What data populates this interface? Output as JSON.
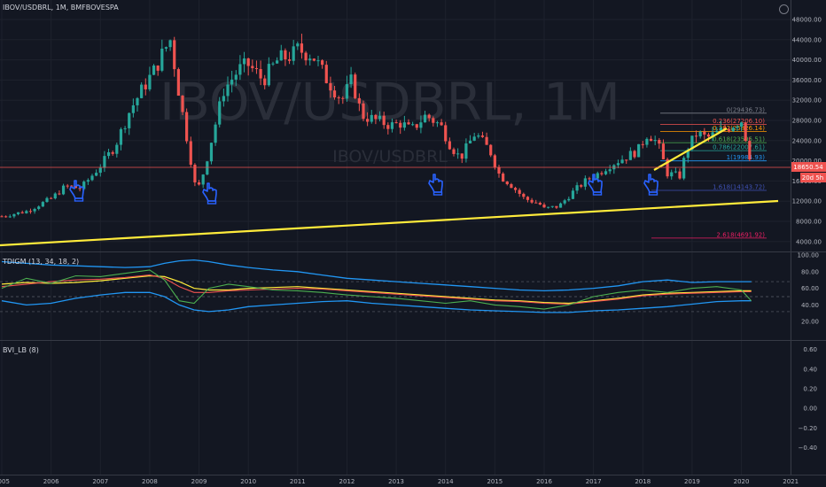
{
  "header": {
    "symbol_line": "IBOV/USDBRL, 1M, BMFBOVESPA",
    "watermark_main": "IBOV/USDBRL, 1M",
    "watermark_sub": "IBOV/USDBRL"
  },
  "colors": {
    "background": "#131722",
    "up": "#26a69a",
    "down": "#ef5350",
    "trendline": "#ffeb3b",
    "price_line": "#ef5350",
    "grid": "#1e222d",
    "separator": "#363a45",
    "text": "#b2b5be",
    "hand_icon": "#2962ff"
  },
  "price_axis": {
    "ticks": [
      "48000.00",
      "44000.00",
      "40000.00",
      "36000.00",
      "32000.00",
      "28000.00",
      "24000.00",
      "20000.00",
      "16000.00",
      "12000.00",
      "8000.00",
      "4000.00"
    ],
    "tick_values": [
      48000,
      44000,
      40000,
      36000,
      32000,
      28000,
      24000,
      20000,
      16000,
      12000,
      8000,
      4000
    ],
    "ylim": [
      2500,
      50000
    ],
    "last_price_label": "18650.54",
    "countdown_label": "20d 5h"
  },
  "time_axis": {
    "labels": [
      "2005",
      "2006",
      "2007",
      "2008",
      "2009",
      "2010",
      "2011",
      "2012",
      "2013",
      "2014",
      "2015",
      "2016",
      "2017",
      "2018",
      "2019",
      "2020",
      "2021"
    ],
    "years": [
      2005,
      2006,
      2007,
      2008,
      2009,
      2010,
      2011,
      2012,
      2013,
      2014,
      2015,
      2016,
      2017,
      2018,
      2019,
      2020,
      2021
    ]
  },
  "chart_data": {
    "type": "candlestick",
    "series": [
      {
        "name": "IBOV/USDBRL",
        "x": [
          2005.0,
          2005.5,
          2006.0,
          2006.3,
          2006.6,
          2007.0,
          2007.3,
          2007.6,
          2007.9,
          2008.1,
          2008.3,
          2008.42,
          2008.6,
          2008.8,
          2008.95,
          2009.1,
          2009.3,
          2009.5,
          2009.8,
          2010.0,
          2010.3,
          2010.6,
          2010.9,
          2011.0,
          2011.3,
          2011.6,
          2011.9,
          2012.1,
          2012.3,
          2012.6,
          2012.9,
          2013.1,
          2013.3,
          2013.6,
          2013.9,
          2014.1,
          2014.3,
          2014.6,
          2014.9,
          2015.1,
          2015.3,
          2015.6,
          2015.9,
          2016.0,
          2016.3,
          2016.6,
          2016.9,
          2017.1,
          2017.3,
          2017.6,
          2017.9,
          2018.1,
          2018.3,
          2018.5,
          2018.75,
          2018.9,
          2019.1,
          2019.3,
          2019.6,
          2019.9,
          2020.0,
          2020.1,
          2020.22
        ],
        "y": [
          9000,
          10000,
          12500,
          15000,
          14500,
          19000,
          23000,
          30000,
          35000,
          38000,
          42000,
          44000,
          33000,
          22000,
          13500,
          18000,
          26000,
          34000,
          38000,
          39000,
          36000,
          40000,
          41000,
          42000,
          41000,
          36000,
          32000,
          36000,
          29000,
          28000,
          27000,
          27500,
          26000,
          29000,
          27000,
          23000,
          20500,
          25500,
          22000,
          17000,
          15500,
          12500,
          11500,
          10500,
          11000,
          14000,
          16500,
          17500,
          19000,
          20500,
          22000,
          25500,
          23500,
          17500,
          17000,
          22500,
          25500,
          24500,
          26000,
          27500,
          28000,
          24000,
          18650
        ]
      }
    ],
    "annotations": {
      "fib_levels": [
        {
          "label": "0(29436.73)",
          "value": 29436.73
        },
        {
          "label": "0.236(27206.10)",
          "value": 27206.1
        },
        {
          "label": "0.382(25826.14)",
          "value": 25826.14
        },
        {
          "label": "0.618(23595.51)",
          "value": 23595.51
        },
        {
          "label": "0.786(22007.61)",
          "value": 22007.61
        },
        {
          "label": "1(19984.93)",
          "value": 19984.93
        },
        {
          "label": "1.618(14143.72)",
          "value": 14143.72
        },
        {
          "label": "2.618(4691.92)",
          "value": 4691.92
        }
      ]
    }
  },
  "indicator_tdigm": {
    "title": "TDIGM (13, 34, 18, 2)",
    "ticks": [
      "100.00",
      "80.00",
      "60.00",
      "40.00",
      "20.00"
    ],
    "tick_values": [
      100,
      80,
      60,
      40,
      20
    ],
    "ylim": [
      0,
      100
    ],
    "levels": [
      32,
      50,
      68
    ],
    "x": [
      2005.0,
      2005.5,
      2006.0,
      2006.5,
      2007.0,
      2007.5,
      2008.0,
      2008.3,
      2008.6,
      2008.9,
      2009.2,
      2009.6,
      2010.0,
      2010.5,
      2011.0,
      2011.5,
      2012.0,
      2012.5,
      2013.0,
      2013.5,
      2014.0,
      2014.5,
      2015.0,
      2015.5,
      2016.0,
      2016.5,
      2017.0,
      2017.5,
      2018.0,
      2018.5,
      2019.0,
      2019.5,
      2020.0,
      2020.2
    ],
    "upper": [
      92,
      90,
      88,
      87,
      86,
      85,
      86,
      90,
      93,
      94,
      92,
      88,
      85,
      82,
      80,
      76,
      72,
      70,
      68,
      66,
      64,
      62,
      60,
      58,
      57,
      58,
      60,
      63,
      68,
      70,
      67,
      68,
      68,
      68
    ],
    "lower": [
      45,
      40,
      42,
      48,
      52,
      55,
      55,
      50,
      40,
      34,
      32,
      34,
      38,
      40,
      42,
      44,
      45,
      42,
      40,
      38,
      36,
      34,
      33,
      32,
      31,
      31,
      33,
      34,
      36,
      38,
      41,
      44,
      45,
      45
    ],
    "mid": [
      65,
      67,
      66,
      67,
      69,
      72,
      75,
      74,
      68,
      60,
      58,
      58,
      60,
      61,
      62,
      60,
      58,
      56,
      54,
      52,
      50,
      48,
      46,
      45,
      43,
      42,
      45,
      48,
      52,
      54,
      55,
      56,
      57,
      57
    ],
    "signal": [
      62,
      65,
      68,
      70,
      71,
      73,
      76,
      72,
      62,
      55,
      55,
      57,
      58,
      59,
      60,
      59,
      57,
      55,
      53,
      51,
      49,
      47,
      45,
      44,
      42,
      41,
      44,
      47,
      51,
      53,
      54,
      55,
      56,
      56
    ],
    "rsi": [
      60,
      72,
      66,
      75,
      74,
      78,
      82,
      70,
      45,
      42,
      60,
      65,
      62,
      58,
      57,
      55,
      52,
      50,
      48,
      45,
      42,
      45,
      40,
      38,
      35,
      40,
      50,
      55,
      58,
      55,
      60,
      62,
      58,
      45
    ]
  },
  "indicator_bvi": {
    "title": "BVI_LB (8)",
    "ticks": [
      "0.60",
      "0.40",
      "0.20",
      "0.00",
      "−0.20",
      "−0.40"
    ],
    "tick_values": [
      0.6,
      0.4,
      0.2,
      0.0,
      -0.2,
      -0.4
    ],
    "ylim": [
      -0.62,
      0.66
    ]
  }
}
